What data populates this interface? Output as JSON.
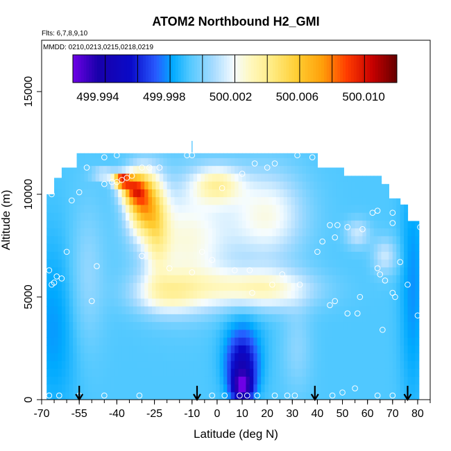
{
  "chart_data": {
    "type": "heatmap",
    "title": "ATOM2 Northbound H2_GMI",
    "flights_note": "Flts: 6,7,8,9,10",
    "dates_note": "MMDD: 0210,0213,0215,0218,0219",
    "xlabel": "Latitude (deg N)",
    "ylabel": "Altitude (m)",
    "xlim": [
      -70,
      85
    ],
    "ylim": [
      0,
      17500
    ],
    "x_tick_labels": [
      "-70",
      "-55",
      "-40",
      "-25",
      "-10",
      "0",
      "10",
      "20",
      "30",
      "40",
      "50",
      "60",
      "70",
      "80"
    ],
    "y_tick_labels": [
      "0",
      "5000",
      "10000",
      "15000"
    ],
    "colorbar": {
      "tick_labels": [
        "499.994",
        "499.998",
        "500.002",
        "500.006",
        "500.010"
      ],
      "colors": [
        "#6600cc",
        "#1a00cc",
        "#000099",
        "#0000cc",
        "#1a33ff",
        "#3366ff",
        "#0099ff",
        "#00ccff",
        "#66ccff",
        "#99ddff",
        "#cceeff",
        "#ffffcc",
        "#fff099",
        "#ffe066",
        "#ffcc33",
        "#ffaa00",
        "#ff8800",
        "#ff5500",
        "#ff0000",
        "#cc0000",
        "#990000",
        "#660000"
      ]
    },
    "grid": false,
    "arrow_latitudes": [
      -55,
      -8,
      39,
      76
    ],
    "field_description_levels": {
      "background": "light blue ~ 499.999",
      "max": "dark red ~ 500.011 near -38,10700",
      "min": "purple ~ 499.993 near 10,300"
    },
    "flight_points": [
      [
        -67,
        200
      ],
      [
        -63,
        200
      ],
      [
        -55,
        200
      ],
      [
        -45,
        200
      ],
      [
        -31,
        200
      ],
      [
        -2,
        200
      ],
      [
        3,
        200
      ],
      [
        9,
        200
      ],
      [
        12,
        200
      ],
      [
        16,
        200
      ],
      [
        23,
        200
      ],
      [
        28,
        200
      ],
      [
        31,
        200
      ],
      [
        46,
        200
      ],
      [
        50,
        350
      ],
      [
        55,
        550
      ],
      [
        64,
        200
      ],
      [
        70,
        200
      ],
      [
        -67,
        6300
      ],
      [
        -66,
        5600
      ],
      [
        -65,
        5700
      ],
      [
        -62,
        5900
      ],
      [
        -64,
        6000
      ],
      [
        -60,
        7200
      ],
      [
        -50,
        4800
      ],
      [
        -48,
        6500
      ],
      [
        -30,
        7000
      ],
      [
        -19,
        6400
      ],
      [
        -10,
        6200
      ],
      [
        -6,
        7200
      ],
      [
        -2,
        6800
      ],
      [
        7,
        6300
      ],
      [
        13,
        6300
      ],
      [
        14,
        5200
      ],
      [
        22,
        5600
      ],
      [
        26,
        6100
      ],
      [
        33,
        5600
      ],
      [
        40,
        7200
      ],
      [
        42,
        7700
      ],
      [
        45,
        4600
      ],
      [
        47,
        4800
      ],
      [
        52,
        4200
      ],
      [
        56,
        4200
      ],
      [
        57,
        5000
      ],
      [
        64,
        6400
      ],
      [
        65,
        6100
      ],
      [
        66,
        3400
      ],
      [
        67,
        5800
      ],
      [
        70,
        5200
      ],
      [
        71,
        5000
      ],
      [
        73,
        6700
      ],
      [
        76,
        5600
      ],
      [
        80,
        4100
      ],
      [
        -66,
        10000
      ],
      [
        -58,
        9700
      ],
      [
        -55,
        10100
      ],
      [
        -45,
        10500
      ],
      [
        -42,
        10600
      ],
      [
        -40,
        10600
      ],
      [
        -38,
        10700
      ],
      [
        -36,
        10800
      ],
      [
        -34,
        10900
      ],
      [
        -30,
        11300
      ],
      [
        -27,
        11300
      ],
      [
        -23,
        11300
      ],
      [
        -12,
        11900
      ],
      [
        -10,
        11900
      ],
      [
        2,
        10300
      ],
      [
        10,
        11000
      ],
      [
        15,
        11500
      ],
      [
        23,
        11500
      ],
      [
        32,
        11900
      ],
      [
        45,
        8500
      ],
      [
        48,
        8500
      ],
      [
        52,
        8400
      ],
      [
        58,
        8300
      ],
      [
        62,
        9100
      ],
      [
        64,
        9200
      ],
      [
        70,
        9100
      ],
      [
        81,
        8400
      ],
      [
        47,
        7900
      ],
      [
        70,
        8600
      ],
      [
        -68,
        11600
      ],
      [
        -58,
        11900
      ],
      [
        -52,
        11300
      ],
      [
        -45,
        11800
      ],
      [
        -40,
        11900
      ],
      [
        20,
        11300
      ],
      [
        38,
        11800
      ],
      [
        46,
        11700
      ]
    ]
  }
}
